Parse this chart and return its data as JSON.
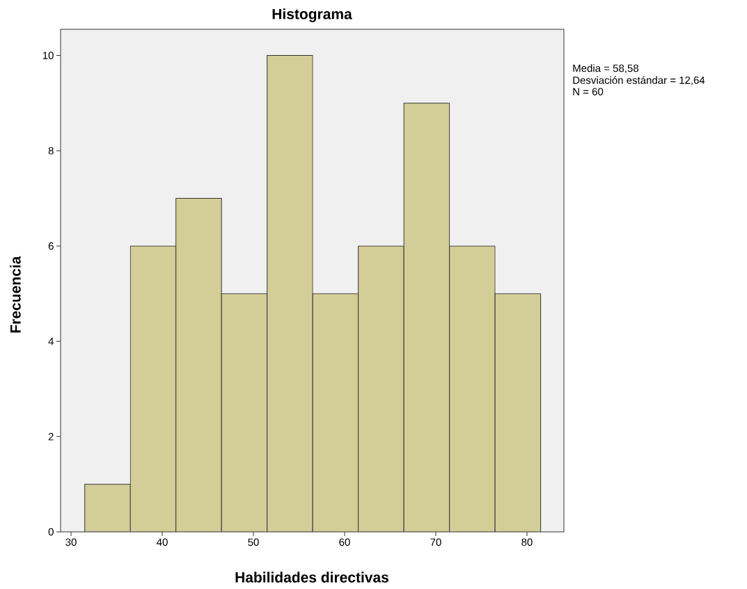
{
  "chart_data": {
    "type": "histogram",
    "title": "Histograma",
    "xlabel": "Habilidades directivas",
    "ylabel": "Frecuencia",
    "bins": [
      31.5,
      36.5,
      41.5,
      46.5,
      51.5,
      56.5,
      61.5,
      66.5,
      71.5,
      76.5,
      81.5
    ],
    "values": [
      1,
      6,
      7,
      5,
      10,
      5,
      6,
      9,
      6,
      5
    ],
    "color": "#d3ce97",
    "xlim": [
      28.85,
      84.05
    ],
    "ylim": [
      0,
      10.55
    ],
    "xticks": [
      30,
      40,
      50,
      60,
      70,
      80
    ],
    "yticks": [
      0,
      2,
      4,
      6,
      8,
      10
    ],
    "annotations": [
      "Media = 58,58",
      "Desviación estándar = 12,64",
      "N = 60"
    ]
  }
}
